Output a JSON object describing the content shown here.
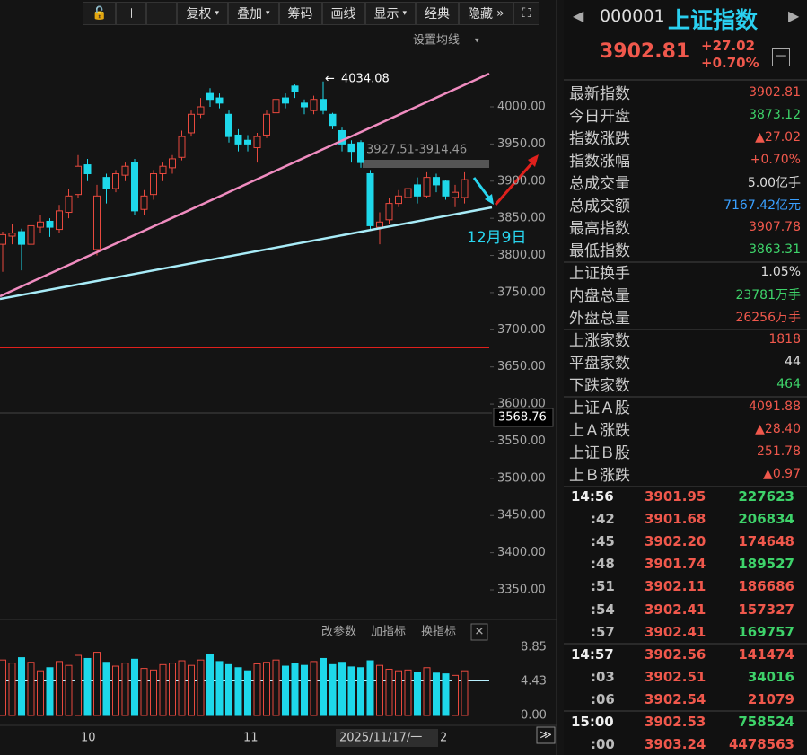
{
  "toolbar": [
    "复权",
    "叠加",
    "筹码",
    "画线",
    "显示",
    "经典",
    "隐藏"
  ],
  "chart": {
    "ma_setting": "设置均线",
    "high_label": "4034.08",
    "gap_label": "3927.51-3914.46",
    "date_label": "12月9日",
    "current_line": "3568.76",
    "price_ticks": [
      {
        "value": 4000,
        "label": "4000.00"
      },
      {
        "value": 3950,
        "label": "3950.00"
      },
      {
        "value": 3900,
        "label": "3900.00"
      },
      {
        "value": 3850,
        "label": "3850.00"
      },
      {
        "value": 3800,
        "label": "3800.00"
      },
      {
        "value": 3750,
        "label": "3750.00"
      },
      {
        "value": 3700,
        "label": "3700.00"
      },
      {
        "value": 3650,
        "label": "3650.00"
      },
      {
        "value": 3600,
        "label": "3600.00"
      },
      {
        "value": 3550,
        "label": "3550.00"
      },
      {
        "value": 3500,
        "label": "3500.00"
      },
      {
        "value": 3450,
        "label": "3450.00"
      },
      {
        "value": 3400,
        "label": "3400.00"
      },
      {
        "value": 3350,
        "label": "3350.00"
      }
    ],
    "candles": [
      [
        3815,
        3832,
        3778,
        3828
      ],
      [
        3826,
        3842,
        3815,
        3830
      ],
      [
        3832,
        3836,
        3780,
        3815
      ],
      [
        3815,
        3848,
        3810,
        3840
      ],
      [
        3838,
        3855,
        3830,
        3845
      ],
      [
        3846,
        3850,
        3825,
        3838
      ],
      [
        3835,
        3868,
        3830,
        3860
      ],
      [
        3858,
        3890,
        3850,
        3880
      ],
      [
        3882,
        3935,
        3878,
        3920
      ],
      [
        3922,
        3930,
        3900,
        3910
      ],
      [
        3808,
        3895,
        3800,
        3880
      ],
      [
        3905,
        3910,
        3870,
        3890
      ],
      [
        3890,
        3915,
        3885,
        3910
      ],
      [
        3908,
        3925,
        3900,
        3920
      ],
      [
        3925,
        3930,
        3855,
        3860
      ],
      [
        3862,
        3888,
        3855,
        3880
      ],
      [
        3882,
        3915,
        3875,
        3910
      ],
      [
        3910,
        3925,
        3900,
        3920
      ],
      [
        3918,
        3935,
        3910,
        3930
      ],
      [
        3932,
        3968,
        3928,
        3960
      ],
      [
        3965,
        3995,
        3960,
        3990
      ],
      [
        3990,
        4012,
        3985,
        4000
      ],
      [
        4018,
        4025,
        4000,
        4010
      ],
      [
        4012,
        4018,
        3998,
        4005
      ],
      [
        3990,
        3995,
        3952,
        3960
      ],
      [
        3962,
        3970,
        3940,
        3950
      ],
      [
        3955,
        3962,
        3940,
        3950
      ],
      [
        3945,
        3965,
        3925,
        3960
      ],
      [
        3962,
        3995,
        3958,
        3990
      ],
      [
        3992,
        4015,
        3985,
        4010
      ],
      [
        4012,
        4018,
        3998,
        4005
      ],
      [
        4028,
        4030,
        4012,
        4020
      ],
      [
        4005,
        4010,
        3990,
        4000
      ],
      [
        3995,
        4015,
        3990,
        4010
      ],
      [
        4010,
        4034.08,
        3990,
        3995
      ],
      [
        3990,
        3992,
        3970,
        3975
      ],
      [
        3968,
        3972,
        3940,
        3950
      ],
      [
        3950,
        3955,
        3925,
        3940
      ],
      [
        3952,
        3955,
        3918,
        3925
      ],
      [
        3910,
        3915,
        3835,
        3840
      ],
      [
        3838,
        3858,
        3815,
        3845
      ],
      [
        3848,
        3878,
        3842,
        3870
      ],
      [
        3870,
        3888,
        3865,
        3880
      ],
      [
        3878,
        3900,
        3872,
        3890
      ],
      [
        3895,
        3905,
        3870,
        3880
      ],
      [
        3880,
        3912,
        3878,
        3905
      ],
      [
        3905,
        3910,
        3885,
        3895
      ],
      [
        3900,
        3902,
        3875,
        3880
      ],
      [
        3878,
        3895,
        3865,
        3885
      ],
      [
        3878,
        3912,
        3870,
        3902
      ]
    ],
    "indicator_buttons": [
      "改参数",
      "加指标",
      "换指标"
    ],
    "volume_ticks": [
      {
        "value": 8.85,
        "label": "8.85"
      },
      {
        "value": 4.43,
        "label": "4.43"
      },
      {
        "value": 0,
        "label": "0.00"
      }
    ],
    "volumes": [
      7.2,
      6.8,
      7.5,
      6.9,
      5.8,
      6.2,
      7.0,
      6.5,
      7.8,
      7.4,
      8.2,
      6.9,
      6.4,
      6.8,
      7.3,
      6.1,
      5.9,
      6.6,
      6.8,
      7.1,
      6.5,
      7.2,
      7.9,
      7.0,
      6.6,
      6.2,
      5.8,
      6.7,
      6.9,
      7.2,
      6.4,
      6.8,
      6.5,
      7.0,
      7.4,
      6.6,
      6.9,
      6.3,
      6.2,
      7.1,
      6.5,
      6.0,
      5.8,
      5.9,
      5.6,
      6.2,
      5.5,
      5.4,
      5.2,
      5.8
    ],
    "x_labels": [
      "10",
      "11",
      "2025/11/17/一",
      "2"
    ]
  },
  "quote": {
    "code": "000001",
    "name": "上证指数",
    "price": "3902.81",
    "change": "+27.02",
    "pct": "+0.70%",
    "groups": [
      [
        [
          "最新指数",
          "3902.81",
          "up"
        ],
        [
          "今日开盘",
          "3873.12",
          "down"
        ],
        [
          "指数涨跌",
          "▲27.02",
          "up"
        ],
        [
          "指数涨幅",
          "+0.70%",
          "up"
        ],
        [
          "总成交量",
          "5.00亿手",
          "flat"
        ],
        [
          "总成交额",
          "7167.42亿元",
          "blue"
        ],
        [
          "最高指数",
          "3907.78",
          "up"
        ],
        [
          "最低指数",
          "3863.31",
          "down"
        ]
      ],
      [
        [
          "上证换手",
          "1.05%",
          "flat"
        ],
        [
          "内盘总量",
          "23781万手",
          "down"
        ],
        [
          "外盘总量",
          "26256万手",
          "up"
        ]
      ],
      [
        [
          "上涨家数",
          "1818",
          "up"
        ],
        [
          "平盘家数",
          "44",
          "flat"
        ],
        [
          "下跌家数",
          "464",
          "down"
        ]
      ],
      [
        [
          "上证Ａ股",
          "4091.88",
          "up"
        ],
        [
          "上Ａ涨跌",
          "▲28.40",
          "up"
        ],
        [
          "上证Ｂ股",
          "251.78",
          "up"
        ],
        [
          "上Ｂ涨跌",
          "▲0.97",
          "up"
        ]
      ]
    ],
    "ticks": [
      [
        [
          "14:56",
          "3901.95",
          "227623",
          "down"
        ],
        [
          ":42",
          "3901.68",
          "206834",
          "down"
        ],
        [
          ":45",
          "3902.20",
          "174648",
          "up"
        ],
        [
          ":48",
          "3901.74",
          "189527",
          "down"
        ],
        [
          ":51",
          "3902.11",
          "186686",
          "up"
        ],
        [
          ":54",
          "3902.41",
          "157327",
          "up"
        ],
        [
          ":57",
          "3902.41",
          "169757",
          "down"
        ]
      ],
      [
        [
          "14:57",
          "3902.56",
          "141474",
          "up"
        ],
        [
          ":03",
          "3902.51",
          "34016",
          "down"
        ],
        [
          ":06",
          "3902.54",
          "21079",
          "up"
        ]
      ],
      [
        [
          "15:00",
          "3902.53",
          "758524",
          "down"
        ],
        [
          ":00",
          "3903.24",
          "4478563",
          "up"
        ]
      ]
    ]
  }
}
